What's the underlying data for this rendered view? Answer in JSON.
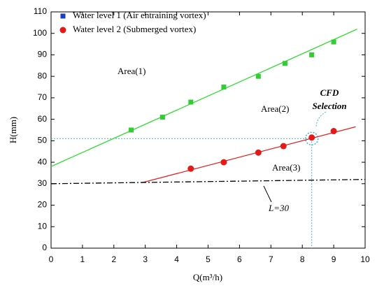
{
  "chart_data": {
    "type": "scatter",
    "x_label": "Q(m³/h)",
    "y_label": "H(mm)",
    "xlim": [
      0,
      10
    ],
    "xticks": [
      0,
      1,
      2,
      3,
      4,
      5,
      6,
      7,
      8,
      9,
      10
    ],
    "ylim": [
      0,
      110
    ],
    "yticks": [
      0,
      10,
      20,
      30,
      40,
      50,
      60,
      70,
      80,
      90,
      100,
      110
    ],
    "legend": "top-left",
    "series": [
      {
        "name": "Water level 1 (Air entraining vortex)",
        "color": "#33cc33",
        "legend_color": "#1a3fbf",
        "marker": "square",
        "x": [
          2.55,
          3.55,
          4.45,
          5.5,
          6.6,
          7.45,
          8.3,
          9.0
        ],
        "values": [
          55,
          61,
          68,
          75,
          80,
          86,
          90,
          96
        ]
      },
      {
        "name": "Water level 2 (Submerged vortex)",
        "color": "#e61919",
        "legend_color": "#e61919",
        "marker": "circle",
        "x": [
          4.45,
          5.5,
          6.6,
          7.4,
          8.3,
          9.0
        ],
        "values": [
          37,
          40,
          44.5,
          47.5,
          51.5,
          54.5
        ]
      }
    ],
    "lines": [
      {
        "color": "#33dd33",
        "style": "solid",
        "x": [
          0,
          9.75
        ],
        "values": [
          38,
          102
        ]
      },
      {
        "color": "#e62020",
        "style": "solid",
        "x": [
          2.9,
          9.7
        ],
        "values": [
          30.5,
          56.5
        ]
      },
      {
        "color": "#000000",
        "style": "dashdot",
        "x": [
          0,
          10
        ],
        "values": [
          30,
          32
        ]
      }
    ],
    "annotations": {
      "area1": "Area(1)",
      "area2": "Area(2)",
      "area3": "Area(3)",
      "limit": "L=30"
    },
    "cfd_selection": {
      "label": [
        "CFD",
        "Selection"
      ],
      "x": 8.3,
      "y": 51,
      "color": "#3fb0d0"
    }
  }
}
